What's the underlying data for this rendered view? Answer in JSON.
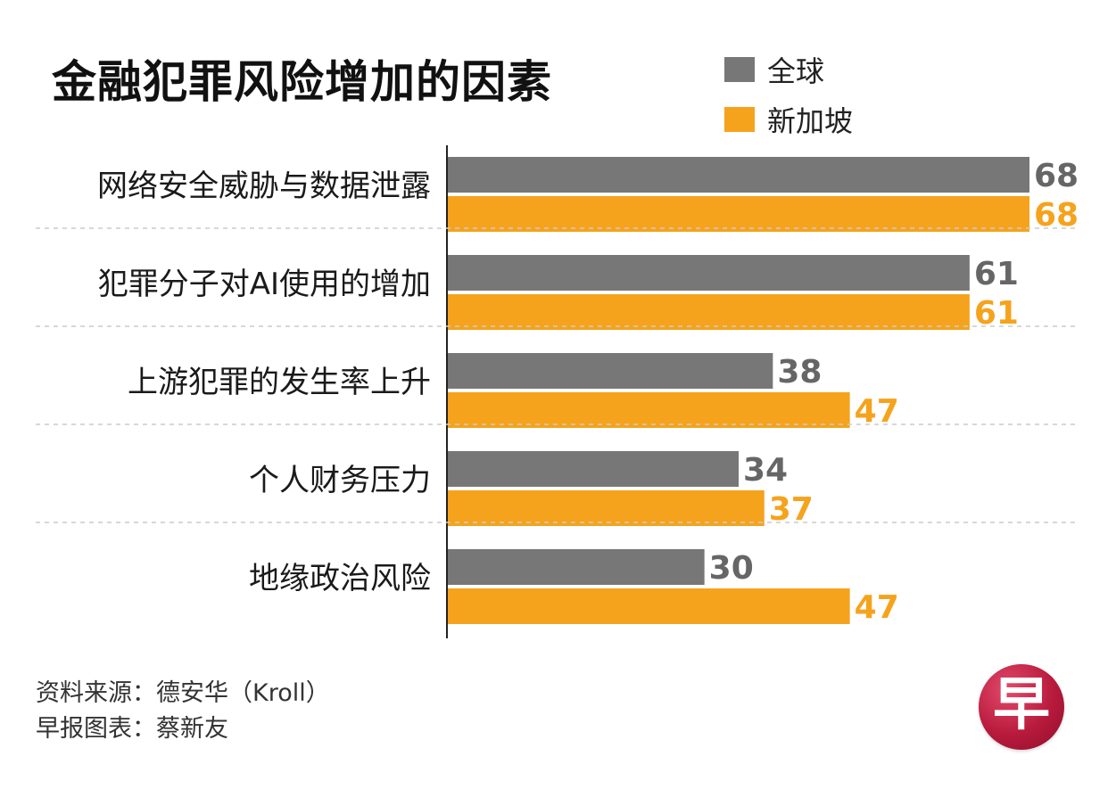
{
  "title": "金融犯罪风险增加的因素",
  "legend": [
    {
      "name": "全球",
      "color": "#777777"
    },
    {
      "name": "新加坡",
      "color": "#f5a31d"
    }
  ],
  "chart_data": {
    "type": "bar",
    "orientation": "horizontal",
    "title": "金融犯罪风险增加的因素",
    "categories": [
      "网络安全威胁与数据泄露",
      "犯罪分子对AI使用的增加",
      "上游犯罪的发生率上升",
      "个人财务压力",
      "地缘政治风险"
    ],
    "series": [
      {
        "name": "全球",
        "color": "#777777",
        "values": [
          68,
          61,
          38,
          34,
          30
        ]
      },
      {
        "name": "新加坡",
        "color": "#f5a31d",
        "values": [
          68,
          61,
          47,
          37,
          47
        ]
      }
    ],
    "xlim": [
      0,
      68
    ],
    "legend_position": "top-right",
    "grid": false
  },
  "footer": {
    "source": "资料来源：德安华（Kroll）",
    "credit": "早报图表：蔡新友"
  },
  "logo": {
    "text": "早"
  }
}
